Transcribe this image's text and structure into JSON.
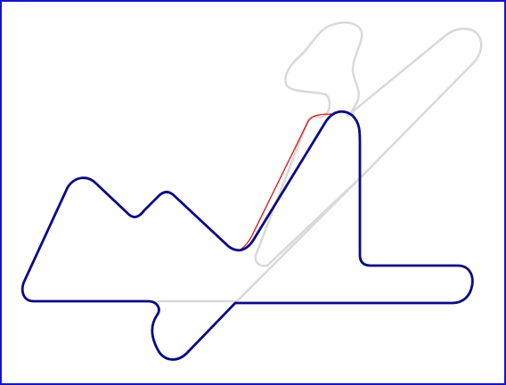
{
  "diagram": {
    "kind": "race-track-map",
    "colors": {
      "frame_border": "#1414c8",
      "background": "#ffffff",
      "ghost_track": "#d9d9d9",
      "active_track": "#0a0a82",
      "highlight_segment": "#e01010"
    },
    "legend": [],
    "labels": []
  }
}
